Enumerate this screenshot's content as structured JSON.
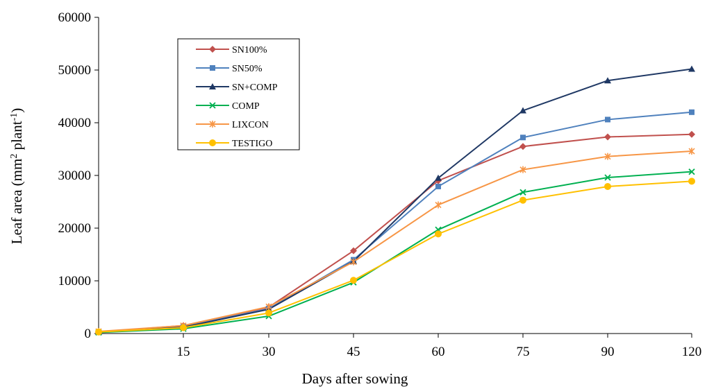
{
  "chart_data": {
    "type": "line",
    "xlabel": "Days after sowing",
    "ylabel": "Leaf area (mm² plant⁻¹)",
    "ylabel_parts": {
      "main": "Leaf area (mm",
      "sup1": "2",
      "mid": "  plant",
      "sup2": "-1",
      "end": ")"
    },
    "x": [
      0,
      15,
      30,
      45,
      60,
      75,
      90,
      120
    ],
    "x_tick_labels": [
      "15",
      "30",
      "45",
      "60",
      "75",
      "90",
      "120"
    ],
    "y_ticks": [
      "0",
      "10000",
      "20000",
      "30000",
      "40000",
      "50000",
      "60000"
    ],
    "ylim": [
      0,
      60000
    ],
    "grid": false,
    "legend_position": "upper-left-inside",
    "series": [
      {
        "name": "SN100%",
        "color": "#C0504D",
        "marker": "diamond",
        "values": [
          300,
          1500,
          5000,
          15700,
          29000,
          35500,
          37300,
          37800
        ]
      },
      {
        "name": "SN50%",
        "color": "#4F81BD",
        "marker": "square",
        "values": [
          300,
          1300,
          4700,
          14000,
          27900,
          37200,
          40600,
          42000
        ]
      },
      {
        "name": "SN+COMP",
        "color": "#1F3864",
        "marker": "triangle",
        "values": [
          300,
          1200,
          4600,
          13700,
          29500,
          42300,
          48000,
          50200
        ]
      },
      {
        "name": "COMP",
        "color": "#00B050",
        "marker": "x",
        "values": [
          200,
          900,
          3300,
          9700,
          19700,
          26800,
          29600,
          30700
        ]
      },
      {
        "name": "LIXCON",
        "color": "#F79646",
        "marker": "star",
        "values": [
          400,
          1500,
          5100,
          13600,
          24400,
          31100,
          33600,
          34600
        ]
      },
      {
        "name": "TESTIGO",
        "color": "#FFC000",
        "marker": "circle",
        "values": [
          300,
          1100,
          3900,
          10100,
          18900,
          25300,
          27900,
          28900
        ]
      }
    ]
  }
}
